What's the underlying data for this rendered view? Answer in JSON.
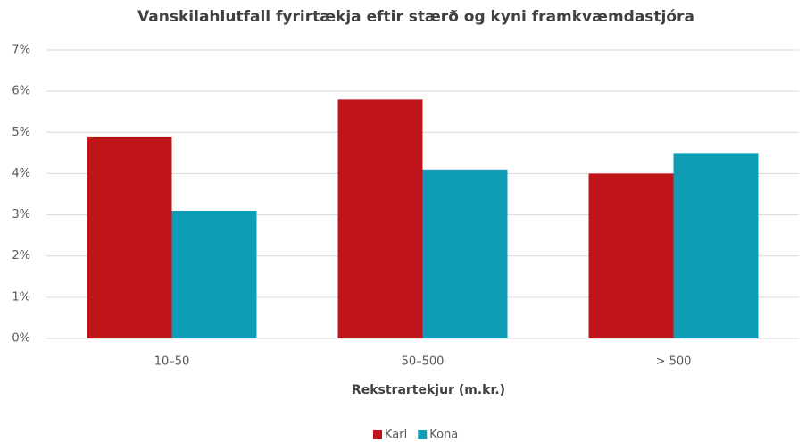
{
  "chart_data": {
    "type": "bar",
    "title": "Vanskilahlutfall fyrirtækja eftir stærð og kyni framkvæmdastjóra",
    "x_label": "Rekstrartekjur (m.kr.)",
    "categories": [
      "10–50",
      "50–500",
      "> 500"
    ],
    "series": [
      {
        "name": "Karl",
        "color": "#c0141b",
        "values": [
          4.9,
          5.8,
          4.0
        ]
      },
      {
        "name": "Kona",
        "color": "#0f9db5",
        "values": [
          3.1,
          4.1,
          4.5
        ]
      }
    ],
    "ylim": [
      0,
      7
    ],
    "yticks": [
      {
        "value": 0,
        "label": "0%"
      },
      {
        "value": 1,
        "label": "1%"
      },
      {
        "value": 2,
        "label": "2%"
      },
      {
        "value": 3,
        "label": "3%"
      },
      {
        "value": 4,
        "label": "4%"
      },
      {
        "value": 5,
        "label": "5%"
      },
      {
        "value": 6,
        "label": "6%"
      },
      {
        "value": 7,
        "label": "7%"
      }
    ],
    "grid": true,
    "legend": "bottom"
  }
}
